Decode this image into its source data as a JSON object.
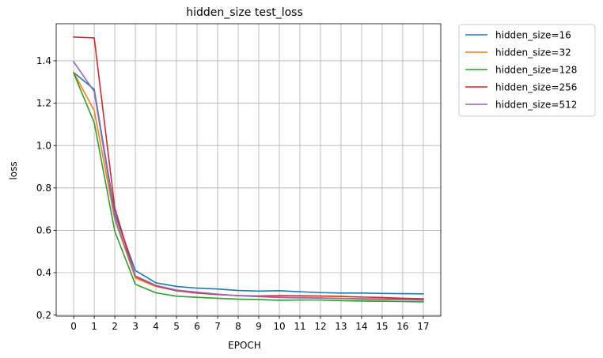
{
  "chart_data": {
    "type": "line",
    "title": "hidden_size test_loss",
    "xlabel": "EPOCH",
    "ylabel": "loss",
    "x": [
      0,
      1,
      2,
      3,
      4,
      5,
      6,
      7,
      8,
      9,
      10,
      11,
      12,
      13,
      14,
      15,
      16,
      17
    ],
    "xlim": [
      -0.85,
      17.85
    ],
    "ylim": [
      0.195,
      1.575
    ],
    "yticks": [
      0.2,
      0.4,
      0.6,
      0.8,
      1.0,
      1.2,
      1.4
    ],
    "ytick_labels": [
      "0.2",
      "0.4",
      "0.6",
      "0.8",
      "1.0",
      "1.2",
      "1.4"
    ],
    "grid": true,
    "legend_position": "outside-top-right",
    "series": [
      {
        "name": "hidden_size=16",
        "color": "#1f77b4",
        "values": [
          1.345,
          1.265,
          0.68,
          0.41,
          0.352,
          0.335,
          0.327,
          0.323,
          0.316,
          0.313,
          0.315,
          0.31,
          0.306,
          0.304,
          0.304,
          0.302,
          0.301,
          0.3
        ]
      },
      {
        "name": "hidden_size=32",
        "color": "#ff7f0e",
        "values": [
          1.345,
          1.165,
          0.65,
          0.375,
          0.335,
          0.315,
          0.305,
          0.298,
          0.292,
          0.288,
          0.285,
          0.283,
          0.281,
          0.279,
          0.278,
          0.277,
          0.276,
          0.274
        ]
      },
      {
        "name": "hidden_size=128",
        "color": "#2ca02c",
        "values": [
          1.342,
          1.108,
          0.595,
          0.345,
          0.305,
          0.289,
          0.284,
          0.279,
          0.275,
          0.273,
          0.27,
          0.271,
          0.271,
          0.268,
          0.266,
          0.265,
          0.264,
          0.262
        ]
      },
      {
        "name": "hidden_size=256",
        "color": "#d62728",
        "values": [
          1.512,
          1.508,
          0.705,
          0.382,
          0.338,
          0.315,
          0.304,
          0.297,
          0.292,
          0.29,
          0.292,
          0.291,
          0.29,
          0.288,
          0.285,
          0.283,
          0.279,
          0.277
        ]
      },
      {
        "name": "hidden_size=512",
        "color": "#9467bd",
        "values": [
          1.395,
          1.255,
          0.66,
          0.385,
          0.34,
          0.318,
          0.308,
          0.299,
          0.291,
          0.287,
          0.283,
          0.281,
          0.28,
          0.278,
          0.274,
          0.273,
          0.272,
          0.27
        ]
      }
    ]
  }
}
